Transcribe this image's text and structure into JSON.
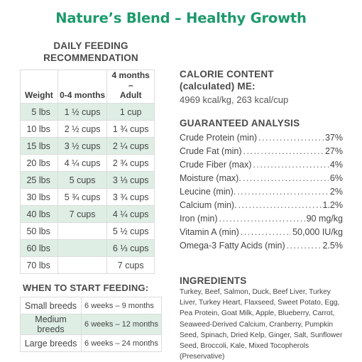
{
  "title": "Nature’s Blend – Healthy Growth",
  "feeding": {
    "heading_line1": "DAILY FEEDING",
    "heading_line2": "RECOMMENDATION",
    "columns": [
      "Weight",
      "0-4 months",
      "4 months –",
      "Adult"
    ],
    "rows": [
      {
        "weight": "5 lbs",
        "puppy": "1 ½ cups",
        "adult": "1 cup"
      },
      {
        "weight": "10 lbs",
        "puppy": "2 ½ cups",
        "adult": "1 ¾ cups"
      },
      {
        "weight": "15 lbs",
        "puppy": "3 ½ cups",
        "adult": "2 ¼ cups"
      },
      {
        "weight": "20 lbs",
        "puppy": "4 ¼ cups",
        "adult": "2 ¾ cups"
      },
      {
        "weight": "25 lbs",
        "puppy": "5 cups",
        "adult": "3 ⅓ cups"
      },
      {
        "weight": "30 lbs",
        "puppy": "5 ¾ cups",
        "adult": "3 ¾ cups"
      },
      {
        "weight": "40 lbs",
        "puppy": "7 cups",
        "adult": "4 ¼ cups"
      },
      {
        "weight": "50 lbs",
        "puppy": "",
        "adult": "5 ½ cups"
      },
      {
        "weight": "60 lbs",
        "puppy": "",
        "adult": "6 ⅓ cups"
      },
      {
        "weight": "70 lbs",
        "puppy": "",
        "adult": "7 cups"
      }
    ]
  },
  "start": {
    "heading": "WHEN TO START FEEDING:",
    "rows": [
      {
        "breed": "Small breeds",
        "age": "6 weeks – 9 months"
      },
      {
        "breed": "Medium breeds",
        "age": "6 weeks – 12 months"
      },
      {
        "breed": "Large breeds",
        "age": "6 weeks – 24 months"
      }
    ]
  },
  "calorie": {
    "heading_line1": "CALORIE CONTENT",
    "heading_line2": "(calculated) ME:",
    "value": "4969 kcal/kg, 263 kcal/cup"
  },
  "analysis": {
    "heading": "GUARANTEED ANALYSIS",
    "rows": [
      {
        "label": "Crude Protein (min)",
        "value": "37%"
      },
      {
        "label": "Crude Fat (min)",
        "value": "27%"
      },
      {
        "label": "Crude Fiber (max)",
        "value": "4%"
      },
      {
        "label": "Moisture (max).",
        "value": "6%"
      },
      {
        "label": "Leucine (min).",
        "value": "2%"
      },
      {
        "label": "Calcium (min).",
        "value": "1.2%"
      },
      {
        "label": "Iron (min)",
        "value": "90 mg/kg"
      },
      {
        "label": "Vitamin A (min)",
        "value": "50,000 IU/kg"
      },
      {
        "label": "Omega-3 Fatty Acids (min)",
        "value": "2.5%"
      }
    ]
  },
  "ingredients": {
    "heading": "INGREDIENTS",
    "text": "Turkey, Beef, Salmon, Duck, Beef Liver, Turkey Liver, Turkey Heart, Flaxseed, Sweet Potato, Egg, Pea Protein, Goat Milk, Apple, Blueberry, Carrot, Seaweed-Derived Calcium, Cranberry, Pumpkin Seed, Spinach, Dried Kelp, Ginger, Salt, Sunflower Seed, Broccoli, Kale, Mixed Tocopherols (Preservative)"
  },
  "colors": {
    "accent": "#1d9a6c",
    "row_shade": "#deeee5"
  }
}
